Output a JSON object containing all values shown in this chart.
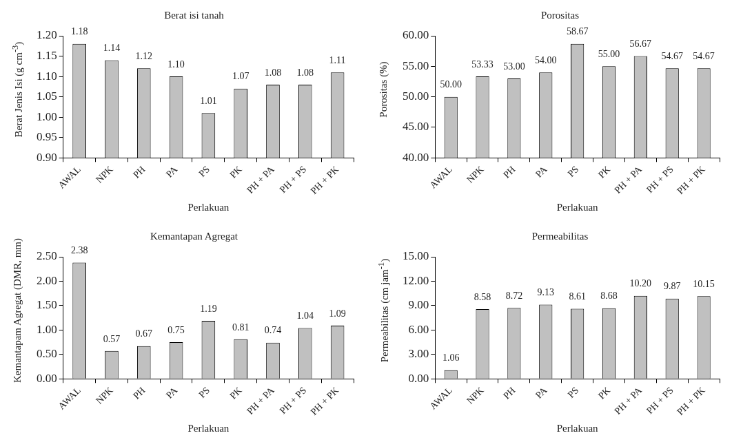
{
  "chart_data": [
    {
      "type": "bar",
      "title": "Berat isi tanah",
      "xlabel": "Perlakuan",
      "ylabel": "Berat Jenis Isi (g cm$^{-3}$)",
      "categories": [
        "AWAL",
        "NPK",
        "PH",
        "PA",
        "PS",
        "PK",
        "PH + PA",
        "PH + PS",
        "PH + PK"
      ],
      "color": "#c0c0c0",
      "values": [
        1.18,
        1.14,
        1.12,
        1.1,
        1.01,
        1.07,
        1.08,
        1.08,
        1.11
      ],
      "value_labels": [
        "1.18",
        "1.14",
        "1.12",
        "1.10",
        "1.01",
        "1.07",
        "1.08",
        "1.08",
        "1.11"
      ],
      "ylim": [
        0.9,
        1.2
      ],
      "yticks": [
        {
          "value": 0.9,
          "label": "0.90"
        },
        {
          "value": 0.95,
          "label": "0.95"
        },
        {
          "value": 1.0,
          "label": "1.00"
        },
        {
          "value": 1.05,
          "label": "1.05"
        },
        {
          "value": 1.1,
          "label": "1.10"
        },
        {
          "value": 1.15,
          "label": "1.15"
        },
        {
          "value": 1.2,
          "label": "1.20"
        }
      ],
      "grid": false,
      "legend": false
    },
    {
      "type": "bar",
      "title": "Porositas",
      "xlabel": "Perlakuan",
      "ylabel": "Porositas (%)",
      "categories": [
        "AWAL",
        "NPK",
        "PH",
        "PA",
        "PS",
        "PK",
        "PH + PA",
        "PH + PS",
        "PH + PK"
      ],
      "color": "#c0c0c0",
      "values": [
        50.0,
        53.33,
        53.0,
        54.0,
        58.67,
        55.0,
        56.67,
        54.67,
        54.67
      ],
      "value_labels": [
        "50.00",
        "53.33",
        "53.00",
        "54.00",
        "58.67",
        "55.00",
        "56.67",
        "54.67",
        "54.67"
      ],
      "ylim": [
        40,
        60
      ],
      "yticks": [
        {
          "value": 40,
          "label": "40.00"
        },
        {
          "value": 45,
          "label": "45.00"
        },
        {
          "value": 50,
          "label": "50.00"
        },
        {
          "value": 55,
          "label": "55.00"
        },
        {
          "value": 60,
          "label": "60.00"
        }
      ],
      "grid": false,
      "legend": false
    },
    {
      "type": "bar",
      "title": "Kemantapan Agregat",
      "xlabel": "Perlakuan",
      "ylabel": "Kemantapam Agregat (DMR, mm)",
      "categories": [
        "AWAL",
        "NPK",
        "PH",
        "PA",
        "PS",
        "PK",
        "PH + PA",
        "PH + PS",
        "PH + PK"
      ],
      "color": "#c0c0c0",
      "values": [
        2.38,
        0.57,
        0.67,
        0.75,
        1.19,
        0.81,
        0.74,
        1.04,
        1.09
      ],
      "value_labels": [
        "2.38",
        "0.57",
        "0.67",
        "0.75",
        "1.19",
        "0.81",
        "0.74",
        "1.04",
        "1.09"
      ],
      "ylim": [
        0,
        2.5
      ],
      "yticks": [
        {
          "value": 0,
          "label": "0.00"
        },
        {
          "value": 0.5,
          "label": "0.50"
        },
        {
          "value": 1.0,
          "label": "1.00"
        },
        {
          "value": 1.5,
          "label": "1.50"
        },
        {
          "value": 2.0,
          "label": "2.00"
        },
        {
          "value": 2.5,
          "label": "2.50"
        }
      ],
      "grid": false,
      "legend": false
    },
    {
      "type": "bar",
      "title": "Permeabilitas",
      "xlabel": "Perlakuan",
      "ylabel": "Permeabilitas (cm jam$^{-1}$)",
      "categories": [
        "AWAL",
        "NPK",
        "PH",
        "PA",
        "PS",
        "PK",
        "PH + PA",
        "PH + PS",
        "PH + PK"
      ],
      "color": "#c0c0c0",
      "values": [
        1.06,
        8.58,
        8.72,
        9.13,
        8.61,
        8.68,
        10.2,
        9.87,
        10.15
      ],
      "value_labels": [
        "1.06",
        "8.58",
        "8.72",
        "9.13",
        "8.61",
        "8.68",
        "10.20",
        "9.87",
        "10.15"
      ],
      "ylim": [
        0,
        15
      ],
      "yticks": [
        {
          "value": 0,
          "label": "0.00"
        },
        {
          "value": 3,
          "label": "3.00"
        },
        {
          "value": 6,
          "label": "6.00"
        },
        {
          "value": 9,
          "label": "9.00"
        },
        {
          "value": 12,
          "label": "12.00"
        },
        {
          "value": 15,
          "label": "15.00"
        }
      ],
      "grid": false,
      "legend": false
    }
  ]
}
